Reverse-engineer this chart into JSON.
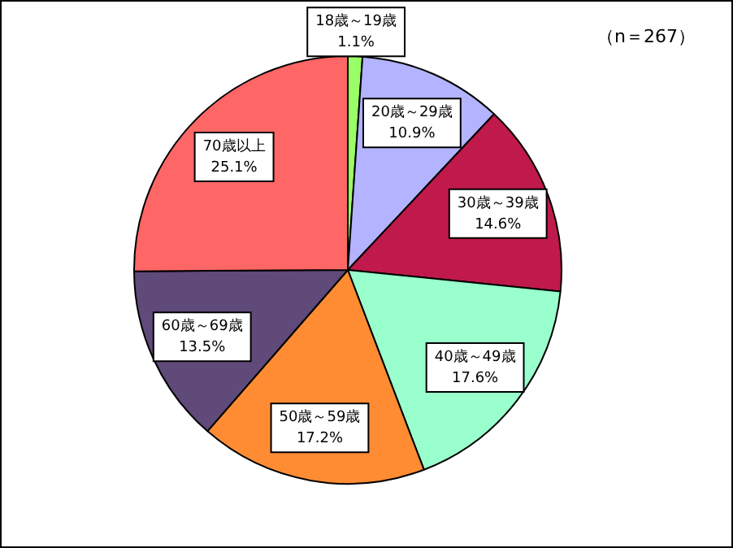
{
  "chart_data": {
    "type": "pie",
    "categories": [
      "18歳～19歳",
      "20歳～29歳",
      "30歳～39歳",
      "40歳～49歳",
      "50歳～59歳",
      "60歳～69歳",
      "70歳以上"
    ],
    "values": [
      1.1,
      10.9,
      14.6,
      17.6,
      17.2,
      13.5,
      25.1
    ],
    "value_labels": [
      "1.1%",
      "10.9%",
      "14.6%",
      "17.6%",
      "17.2%",
      "13.5%",
      "25.1%"
    ],
    "colors": [
      "#99ff66",
      "#b3b3ff",
      "#c0194b",
      "#99ffcc",
      "#ff8c33",
      "#5f4a7a",
      "#ff6666"
    ],
    "annotations": [
      "（n＝267）"
    ],
    "legend": false
  }
}
